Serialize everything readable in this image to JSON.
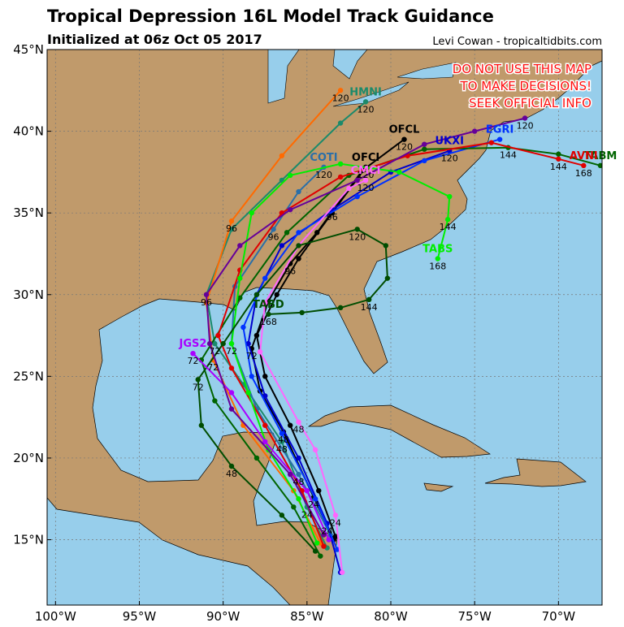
{
  "header": {
    "title": "Tropical Depression 16L Model Track Guidance",
    "subtitle": "Initialized at 06z Oct 05 2017",
    "credit": "Levi Cowan - tropicaltidbits.com",
    "warning": [
      "DO NOT USE THIS MAP",
      "TO MAKE DECISIONS!",
      "SEEK OFFICIAL INFO"
    ]
  },
  "map": {
    "xlim": [
      -100.5,
      -67.4
    ],
    "ylim": [
      11,
      45
    ],
    "grid": true,
    "xticks": [
      {
        "value": -100,
        "label": "100°W"
      },
      {
        "value": -95,
        "label": "95°W"
      },
      {
        "value": -90,
        "label": "90°W"
      },
      {
        "value": -85,
        "label": "85°W"
      },
      {
        "value": -80,
        "label": "80°W"
      },
      {
        "value": -75,
        "label": "75°W"
      },
      {
        "value": -70,
        "label": "70°W"
      }
    ],
    "yticks": [
      {
        "value": 15,
        "label": "15°N"
      },
      {
        "value": 20,
        "label": "20°N"
      },
      {
        "value": 25,
        "label": "25°N"
      },
      {
        "value": 30,
        "label": "30°N"
      },
      {
        "value": 35,
        "label": "35°N"
      },
      {
        "value": 40,
        "label": "40°N"
      },
      {
        "value": 45,
        "label": "45°N"
      }
    ]
  },
  "tracks": [
    {
      "name": "OFCL",
      "color": "#000000",
      "points": [
        {
          "lon": -83.4,
          "lat": 15
        },
        {
          "lon": -84.6,
          "lat": 17.6,
          "hour": 24
        },
        {
          "lon": -86.4,
          "lat": 21.6,
          "hour": 48
        },
        {
          "lon": -87.8,
          "lat": 24.1
        },
        {
          "lon": -88.3,
          "lat": 26.7,
          "hour": 72
        },
        {
          "lon": -87.3,
          "lat": 29.6
        },
        {
          "lon": -86,
          "lat": 31.9,
          "hour": 96
        },
        {
          "lon": -84.4,
          "lat": 33.8
        },
        {
          "lon": -81.7,
          "lat": 37.6
        },
        {
          "lon": -79.2,
          "lat": 39.5,
          "hour": 120
        }
      ]
    },
    {
      "name": "OFCI",
      "color": "#000000",
      "points": [
        {
          "lon": -83.3,
          "lat": 15.2
        },
        {
          "lon": -84.3,
          "lat": 18
        },
        {
          "lon": -86,
          "lat": 22
        },
        {
          "lon": -87.5,
          "lat": 25
        },
        {
          "lon": -88,
          "lat": 27.5
        },
        {
          "lon": -86.8,
          "lat": 30
        },
        {
          "lon": -85.5,
          "lat": 32.2
        },
        {
          "lon": -83.5,
          "lat": 35
        },
        {
          "lon": -81.5,
          "lat": 37.8,
          "hour": 120
        }
      ]
    },
    {
      "name": "HMNI",
      "color": "#1b8a6b",
      "points": [
        {
          "lon": -83.8,
          "lat": 14.5
        },
        {
          "lon": -85,
          "lat": 17,
          "hour": 24
        },
        {
          "lon": -86.5,
          "lat": 21,
          "hour": 48
        },
        {
          "lon": -88.8,
          "lat": 24.5
        },
        {
          "lon": -90.5,
          "lat": 27,
          "hour": 72
        },
        {
          "lon": -91,
          "lat": 30,
          "hour": 96
        },
        {
          "lon": -89.5,
          "lat": 34
        },
        {
          "lon": -86.5,
          "lat": 37
        },
        {
          "lon": -83,
          "lat": 40.5
        },
        {
          "lon": -81.5,
          "lat": 41.8,
          "hour": 120
        }
      ]
    },
    {
      "color": "#ff6a00",
      "points": [
        {
          "lon": -84.2,
          "lat": 14.8
        },
        {
          "lon": -85.8,
          "lat": 18
        },
        {
          "lon": -88.8,
          "lat": 22
        },
        {
          "lon": -90.6,
          "lat": 26,
          "hour": 72
        },
        {
          "lon": -91,
          "lat": 29.5
        },
        {
          "lon": -89.5,
          "lat": 34.5,
          "hour": 96
        },
        {
          "lon": -86.5,
          "lat": 38.5
        },
        {
          "lon": -83,
          "lat": 42.5,
          "hour": 120
        }
      ]
    },
    {
      "name": "COTI",
      "color": "#2a6fa8",
      "points": [
        {
          "lon": -83.6,
          "lat": 15.3
        },
        {
          "lon": -85.5,
          "lat": 19,
          "hour": 48
        },
        {
          "lon": -88,
          "lat": 23
        },
        {
          "lon": -89.5,
          "lat": 27,
          "hour": 72
        },
        {
          "lon": -89.3,
          "lat": 30.5
        },
        {
          "lon": -87,
          "lat": 34,
          "hour": 96
        },
        {
          "lon": -85.5,
          "lat": 36.3
        },
        {
          "lon": -84,
          "lat": 37.8,
          "hour": 120
        }
      ]
    },
    {
      "name": "UKXI",
      "color": "#0000cd",
      "points": [
        {
          "lon": -83,
          "lat": 13
        },
        {
          "lon": -83.8,
          "lat": 16,
          "hour": 24
        },
        {
          "lon": -85.5,
          "lat": 20
        },
        {
          "lon": -87.5,
          "lat": 23.8
        },
        {
          "lon": -88.5,
          "lat": 27
        },
        {
          "lon": -88,
          "lat": 30
        },
        {
          "lon": -86.5,
          "lat": 33
        },
        {
          "lon": -83.5,
          "lat": 35.2,
          "hour": 96
        },
        {
          "lon": -80,
          "lat": 37.5
        },
        {
          "lon": -76.5,
          "lat": 38.8,
          "hour": 120
        }
      ]
    },
    {
      "name": "EGRI",
      "color": "#0033ff",
      "points": [
        {
          "lon": -83.2,
          "lat": 14.4
        },
        {
          "lon": -84.5,
          "lat": 17.5
        },
        {
          "lon": -86.5,
          "lat": 21.5
        },
        {
          "lon": -88.3,
          "lat": 25
        },
        {
          "lon": -88.8,
          "lat": 28
        },
        {
          "lon": -87.5,
          "lat": 31
        },
        {
          "lon": -85.5,
          "lat": 33.8
        },
        {
          "lon": -82,
          "lat": 36
        },
        {
          "lon": -78,
          "lat": 38.2
        },
        {
          "lon": -73.5,
          "lat": 39.5
        }
      ]
    },
    {
      "name": "TABM",
      "color": "#006400",
      "points": [
        {
          "lon": -84.2,
          "lat": 14
        },
        {
          "lon": -85.8,
          "lat": 17
        },
        {
          "lon": -88,
          "lat": 20
        },
        {
          "lon": -90.5,
          "lat": 23.5
        },
        {
          "lon": -91.3,
          "lat": 26
        },
        {
          "lon": -89,
          "lat": 29.8
        },
        {
          "lon": -86.2,
          "lat": 33.8
        },
        {
          "lon": -82.5,
          "lat": 37.3
        },
        {
          "lon": -78,
          "lat": 38.9
        },
        {
          "lon": -73,
          "lat": 39,
          "hour": 144
        },
        {
          "lon": -70,
          "lat": 38.6
        },
        {
          "lon": -67.5,
          "lat": 37.9
        }
      ]
    },
    {
      "name": "AVNI",
      "color": "#e00000",
      "points": [
        {
          "lon": -84,
          "lat": 14.6
        },
        {
          "lon": -85.3,
          "lat": 18
        },
        {
          "lon": -87.5,
          "lat": 22
        },
        {
          "lon": -89.5,
          "lat": 25.5
        },
        {
          "lon": -90.3,
          "lat": 27.5
        },
        {
          "lon": -89,
          "lat": 31.5
        },
        {
          "lon": -86.5,
          "lat": 35
        },
        {
          "lon": -83,
          "lat": 37.2
        },
        {
          "lon": -79,
          "lat": 38.5
        },
        {
          "lon": -74,
          "lat": 39.3
        },
        {
          "lon": -70,
          "lat": 38.3,
          "hour": 144
        },
        {
          "lon": -68.5,
          "lat": 37.9,
          "hour": 168
        }
      ]
    },
    {
      "name": "CMCI",
      "color": "#ff66ff",
      "points": [
        {
          "lon": -82.9,
          "lat": 13
        },
        {
          "lon": -83.3,
          "lat": 16.5,
          "hour": 24
        },
        {
          "lon": -84.5,
          "lat": 20.5
        },
        {
          "lon": -85.5,
          "lat": 22.2,
          "hour": 48
        },
        {
          "lon": -87.8,
          "lat": 26.5
        },
        {
          "lon": -87.5,
          "lat": 29.5
        },
        {
          "lon": -85.5,
          "lat": 33
        },
        {
          "lon": -82.5,
          "lat": 36.5
        },
        {
          "lon": -81.5,
          "lat": 37,
          "hour": 120
        }
      ]
    },
    {
      "name": "TABS",
      "color": "#00ee00",
      "points": [
        {
          "lon": -84.4,
          "lat": 14.8
        },
        {
          "lon": -85.5,
          "lat": 17.5
        },
        {
          "lon": -87.3,
          "lat": 20.5
        },
        {
          "lon": -88.5,
          "lat": 24
        },
        {
          "lon": -89.5,
          "lat": 27
        },
        {
          "lon": -89,
          "lat": 31
        },
        {
          "lon": -88.3,
          "lat": 35
        },
        {
          "lon": -86,
          "lat": 37.3
        },
        {
          "lon": -83,
          "lat": 38
        },
        {
          "lon": -79.5,
          "lat": 37.5
        },
        {
          "lon": -76.5,
          "lat": 36
        },
        {
          "lon": -76.6,
          "lat": 34.6,
          "hour": 144
        },
        {
          "lon": -77.2,
          "lat": 32.2,
          "hour": 168
        }
      ]
    },
    {
      "name": "TABD",
      "color": "#004d00",
      "points": [
        {
          "lon": -84.5,
          "lat": 14.3
        },
        {
          "lon": -86.5,
          "lat": 16.5
        },
        {
          "lon": -89.5,
          "lat": 19.5,
          "hour": 48
        },
        {
          "lon": -91.3,
          "lat": 22
        },
        {
          "lon": -91.5,
          "lat": 24.8,
          "hour": 72
        },
        {
          "lon": -90,
          "lat": 27
        },
        {
          "lon": -88,
          "lat": 30
        },
        {
          "lon": -85.5,
          "lat": 33
        },
        {
          "lon": -82,
          "lat": 34,
          "hour": 120
        },
        {
          "lon": -80.3,
          "lat": 33
        },
        {
          "lon": -80.2,
          "lat": 31
        },
        {
          "lon": -81.3,
          "lat": 29.7,
          "hour": 144
        },
        {
          "lon": -83,
          "lat": 29.2
        },
        {
          "lon": -85.3,
          "lat": 28.9
        },
        {
          "lon": -87.3,
          "lat": 28.8,
          "hour": 168
        }
      ]
    },
    {
      "name": "JGS2",
      "color": "#aa00ff",
      "points": [
        {
          "lon": -83.7,
          "lat": 15
        },
        {
          "lon": -85,
          "lat": 18
        },
        {
          "lon": -87.5,
          "lat": 21
        },
        {
          "lon": -89.5,
          "lat": 24
        },
        {
          "lon": -91.8,
          "lat": 26.4,
          "hour": 72
        }
      ]
    },
    {
      "color": "#660099",
      "points": [
        {
          "lon": -84,
          "lat": 15.3
        },
        {
          "lon": -86,
          "lat": 19
        },
        {
          "lon": -89.5,
          "lat": 23
        },
        {
          "lon": -90.8,
          "lat": 27
        },
        {
          "lon": -91,
          "lat": 30
        },
        {
          "lon": -89,
          "lat": 33
        },
        {
          "lon": -86,
          "lat": 35.2
        },
        {
          "lon": -82,
          "lat": 37
        },
        {
          "lon": -78,
          "lat": 39.2
        },
        {
          "lon": -75,
          "lat": 40
        },
        {
          "lon": -72,
          "lat": 40.8,
          "hour": 120
        }
      ]
    }
  ]
}
